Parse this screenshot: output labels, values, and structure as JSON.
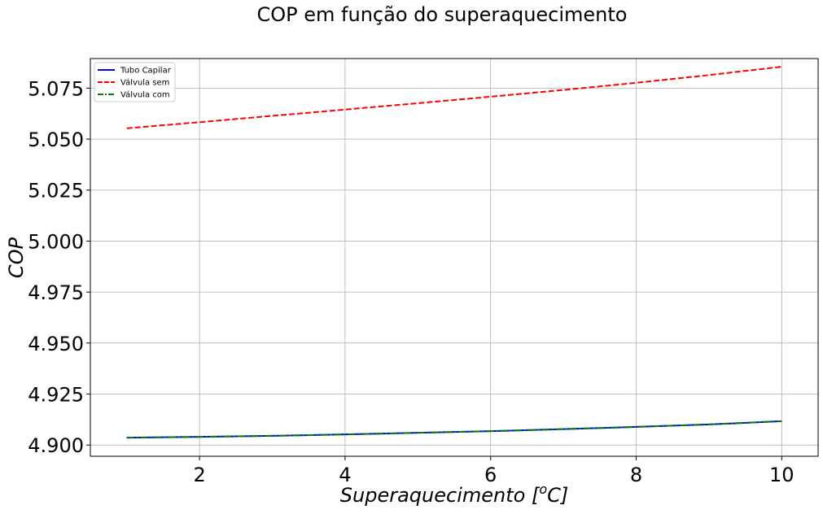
{
  "chart_data": {
    "type": "line",
    "title": "COP em função do superaquecimento",
    "xlabel": "Superaquecimento [°C]",
    "xlabel_parts": {
      "main": "Superaquecimento [",
      "sup_base": "C",
      "sup": "o",
      "end": "]"
    },
    "ylabel": "COP",
    "xlim": [
      0.5,
      10.5
    ],
    "ylim": [
      4.8945,
      5.0895
    ],
    "xticks": [
      2,
      4,
      6,
      8,
      10
    ],
    "yticks": [
      4.9,
      4.925,
      4.95,
      4.975,
      5.0,
      5.025,
      5.05,
      5.075
    ],
    "ytick_labels": [
      "4.900",
      "4.925",
      "4.950",
      "4.975",
      "5.000",
      "5.025",
      "5.050",
      "5.075"
    ],
    "grid": true,
    "legend_position": "top-left",
    "x": [
      1,
      2,
      3,
      4,
      5,
      6,
      7,
      8,
      9,
      10
    ],
    "series": [
      {
        "name": "Tubo Capilar",
        "color": "#0000ff",
        "style": "solid",
        "values": [
          4.9036,
          4.904,
          4.9045,
          4.9052,
          4.906,
          4.9068,
          4.9078,
          4.9089,
          4.9101,
          4.9117
        ]
      },
      {
        "name": "Válvula sem",
        "color": "#ff0000",
        "style": "dashed",
        "values": [
          5.0553,
          5.0583,
          5.0614,
          5.0645,
          5.0676,
          5.0708,
          5.0741,
          5.0776,
          5.0814,
          5.0855
        ]
      },
      {
        "name": "Válvula com",
        "color": "#008000",
        "style": "dashdot",
        "values": [
          4.9036,
          4.904,
          4.9045,
          4.9052,
          4.906,
          4.9068,
          4.9078,
          4.9089,
          4.9101,
          4.9117
        ]
      }
    ]
  }
}
